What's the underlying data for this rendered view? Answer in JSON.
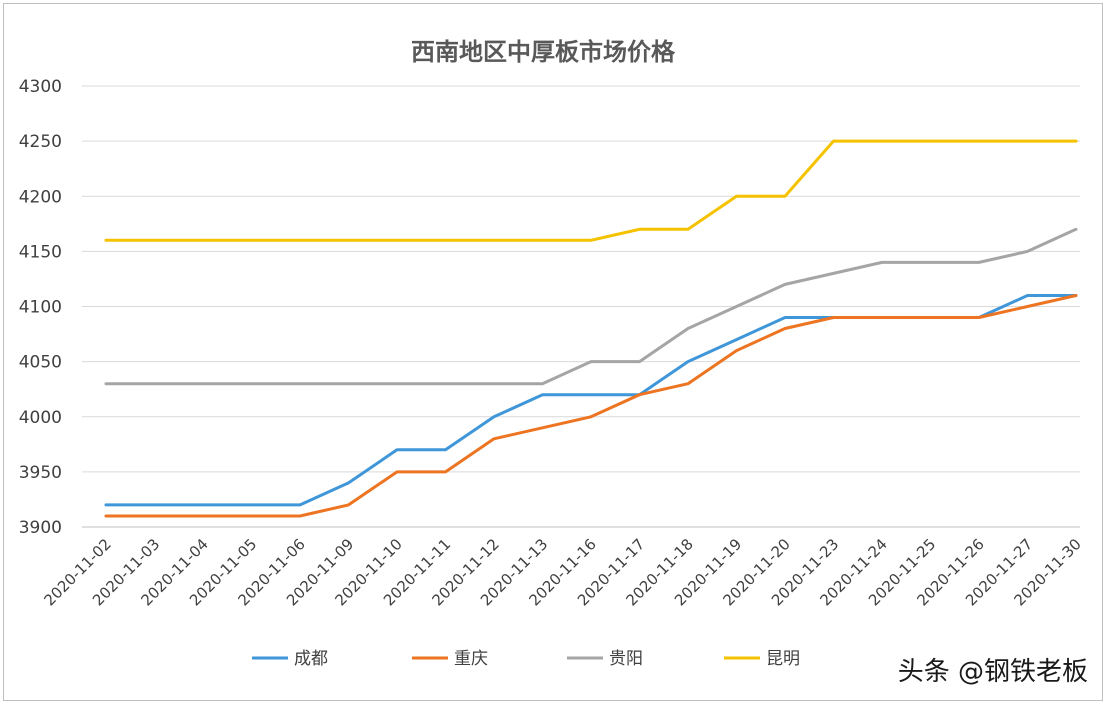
{
  "chart_data": {
    "type": "line",
    "title": "西南地区中厚板市场价格",
    "xlabel": "",
    "ylabel": "",
    "ylim": [
      3900,
      4300
    ],
    "yticks": [
      3900,
      3950,
      4000,
      4050,
      4100,
      4150,
      4200,
      4250,
      4300
    ],
    "grid": true,
    "legend_position": "bottom",
    "categories": [
      "2020-11-02",
      "2020-11-03",
      "2020-11-04",
      "2020-11-05",
      "2020-11-06",
      "2020-11-09",
      "2020-11-10",
      "2020-11-11",
      "2020-11-12",
      "2020-11-13",
      "2020-11-16",
      "2020-11-17",
      "2020-11-18",
      "2020-11-19",
      "2020-11-20",
      "2020-11-23",
      "2020-11-24",
      "2020-11-25",
      "2020-11-26",
      "2020-11-27",
      "2020-11-30"
    ],
    "series": [
      {
        "name": "成都",
        "color": "#3f96d8",
        "values": [
          3920,
          3920,
          3920,
          3920,
          3920,
          3940,
          3970,
          3970,
          4000,
          4020,
          4020,
          4020,
          4050,
          4070,
          4090,
          4090,
          4090,
          4090,
          4090,
          4110,
          4110
        ]
      },
      {
        "name": "重庆",
        "color": "#ed7421",
        "values": [
          3910,
          3910,
          3910,
          3910,
          3910,
          3920,
          3950,
          3950,
          3980,
          3990,
          4000,
          4020,
          4030,
          4060,
          4080,
          4090,
          4090,
          4090,
          4090,
          4100,
          4110
        ]
      },
      {
        "name": "贵阳",
        "color": "#a5a5a5",
        "values": [
          4030,
          4030,
          4030,
          4030,
          4030,
          4030,
          4030,
          4030,
          4030,
          4030,
          4050,
          4050,
          4080,
          4100,
          4120,
          4130,
          4140,
          4140,
          4140,
          4150,
          4170
        ]
      },
      {
        "name": "昆明",
        "color": "#f5c200",
        "values": [
          4160,
          4160,
          4160,
          4160,
          4160,
          4160,
          4160,
          4160,
          4160,
          4160,
          4160,
          4170,
          4170,
          4200,
          4200,
          4250,
          4250,
          4250,
          4250,
          4250,
          4250
        ]
      }
    ]
  },
  "watermark": "头条 @钢铁老板"
}
